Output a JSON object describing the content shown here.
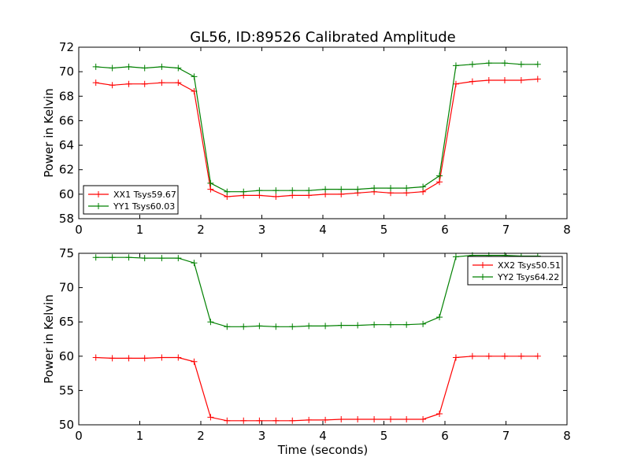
{
  "title": "GL56, ID:89526 Calibrated Amplitude",
  "chart_data": [
    {
      "type": "line",
      "title": "GL56, ID:89526 Calibrated Amplitude",
      "xlabel": "",
      "ylabel": "Power in Kelvin",
      "xlim": [
        0,
        8
      ],
      "ylim": [
        58,
        72
      ],
      "xticks": [
        0,
        1,
        2,
        3,
        4,
        5,
        6,
        7,
        8
      ],
      "yticks": [
        58,
        60,
        62,
        64,
        66,
        68,
        70,
        72
      ],
      "grid": false,
      "legend": "lower-left",
      "x": [
        0.28,
        0.55,
        0.82,
        1.08,
        1.36,
        1.63,
        1.89,
        2.16,
        2.43,
        2.7,
        2.96,
        3.23,
        3.5,
        3.77,
        4.04,
        4.3,
        4.57,
        4.84,
        5.11,
        5.37,
        5.64,
        5.91,
        6.18,
        6.45,
        6.72,
        6.98,
        7.25,
        7.52
      ],
      "series": [
        {
          "name": "XX1 Tsys59.67",
          "color": "#ff0000",
          "values": [
            69.1,
            68.9,
            69.0,
            69.0,
            69.1,
            69.1,
            68.4,
            60.4,
            59.8,
            59.9,
            59.9,
            59.8,
            59.9,
            59.9,
            60.0,
            60.0,
            60.1,
            60.2,
            60.1,
            60.1,
            60.2,
            61.0,
            69.0,
            69.2,
            69.3,
            69.3,
            69.3,
            69.4
          ]
        },
        {
          "name": "YY1 Tsys60.03",
          "color": "#008000",
          "values": [
            70.4,
            70.3,
            70.4,
            70.3,
            70.4,
            70.3,
            69.6,
            60.9,
            60.2,
            60.2,
            60.3,
            60.3,
            60.3,
            60.3,
            60.4,
            60.4,
            60.4,
            60.5,
            60.5,
            60.5,
            60.6,
            61.5,
            70.5,
            70.6,
            70.7,
            70.7,
            70.6,
            70.6
          ]
        }
      ]
    },
    {
      "type": "line",
      "title": "",
      "xlabel": "Time (seconds)",
      "ylabel": "Power in Kelvin",
      "xlim": [
        0,
        8
      ],
      "ylim": [
        50,
        75
      ],
      "xticks": [
        0,
        1,
        2,
        3,
        4,
        5,
        6,
        7,
        8
      ],
      "yticks": [
        50,
        55,
        60,
        65,
        70,
        75
      ],
      "grid": false,
      "legend": "upper-right",
      "x": [
        0.28,
        0.55,
        0.82,
        1.08,
        1.36,
        1.63,
        1.89,
        2.16,
        2.43,
        2.7,
        2.96,
        3.23,
        3.5,
        3.77,
        4.04,
        4.3,
        4.57,
        4.84,
        5.11,
        5.37,
        5.64,
        5.91,
        6.18,
        6.45,
        6.72,
        6.98,
        7.25,
        7.52
      ],
      "series": [
        {
          "name": "XX2 Tsys50.51",
          "color": "#ff0000",
          "values": [
            59.8,
            59.7,
            59.7,
            59.7,
            59.8,
            59.8,
            59.2,
            51.1,
            50.6,
            50.6,
            50.6,
            50.6,
            50.6,
            50.7,
            50.7,
            50.8,
            50.8,
            50.8,
            50.8,
            50.8,
            50.8,
            51.6,
            59.8,
            60.0,
            60.0,
            60.0,
            60.0,
            60.0
          ]
        },
        {
          "name": "YY2 Tsys64.22",
          "color": "#008000",
          "values": [
            74.4,
            74.4,
            74.4,
            74.3,
            74.3,
            74.3,
            73.6,
            65.0,
            64.3,
            64.3,
            64.4,
            64.3,
            64.3,
            64.4,
            64.4,
            64.5,
            64.5,
            64.6,
            64.6,
            64.6,
            64.7,
            65.7,
            74.5,
            74.7,
            74.7,
            74.7,
            74.6,
            74.6
          ]
        }
      ]
    }
  ]
}
